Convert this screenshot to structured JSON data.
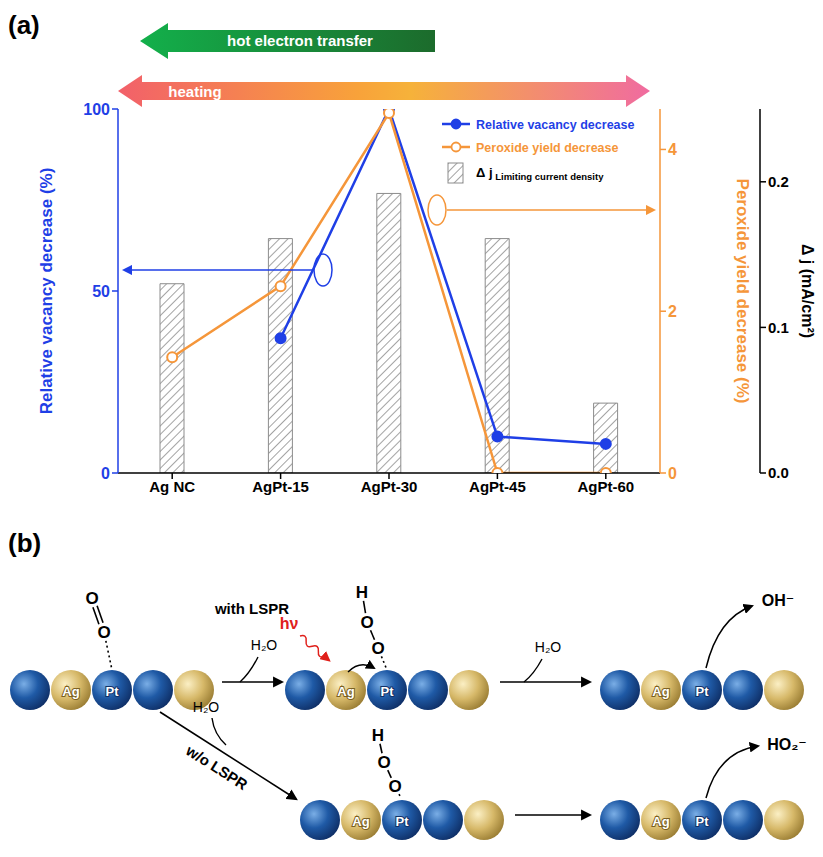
{
  "chart_data": {
    "type": "bar",
    "panel_label": "(a)",
    "categories": [
      "Ag NC",
      "AgPt-15",
      "AgPt-30",
      "AgPt-45",
      "AgPt-60"
    ],
    "series": [
      {
        "name": "Relative vacancy decrease",
        "type": "line",
        "color": "#1f3fe6",
        "marker": "circle",
        "values": [
          null,
          37,
          100,
          10,
          8
        ]
      },
      {
        "name": "Peroxide yield decrease",
        "type": "line",
        "color": "#f5963a",
        "axis": "y2",
        "marker": "open circle",
        "values": [
          1.43,
          2.31,
          4.45,
          0,
          0
        ]
      },
      {
        "name": "Δ j Limiting current density",
        "type": "bar",
        "color": "#8c8c8c",
        "axis": "y3",
        "values": [
          0.13,
          0.161,
          0.192,
          0.161,
          0.048
        ]
      }
    ],
    "ylim": [
      0,
      100
    ],
    "yticks": [
      0,
      50,
      100
    ],
    "y2lim": [
      0,
      4.5
    ],
    "y2ticks": [
      0,
      2,
      4
    ],
    "y3lim": [
      0,
      0.25
    ],
    "y3ticks": [
      {
        "value": 0,
        "label": "0.0"
      },
      0.1,
      0.2
    ],
    "y_label": "Relative vacancy decrease (%)",
    "y2_label": "Peroxide yield decrease (%)",
    "y3_label": "Δ j (mA/cm²)",
    "legend": "upper right",
    "annotations": [
      "hot electron transfer",
      "heating"
    ]
  },
  "diagram": {
    "panel_label": "(b)",
    "atoms": [
      "Ag",
      "Pt"
    ],
    "oxygen": "O",
    "hydrogen": "H",
    "reactant": "H₂O",
    "with_lspr": "with LSPR",
    "without_lspr": "w/o LSPR",
    "photon": "hν",
    "products": [
      "OH⁻",
      "HO₂⁻"
    ]
  }
}
